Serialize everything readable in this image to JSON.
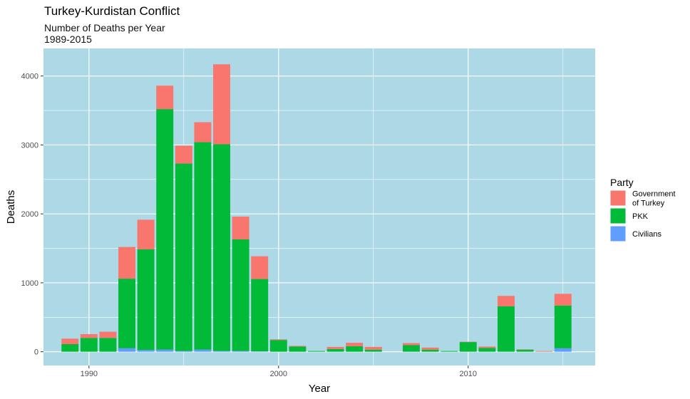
{
  "chart_data": {
    "type": "bar",
    "stacked": true,
    "title": "Turkey-Kurdistan Conflict",
    "subtitle_line1": "Number of Deaths per Year",
    "subtitle_line2": "1989-2015",
    "xlabel": "Year",
    "ylabel": "Deaths",
    "xlim": [
      1987.6,
      2016.7
    ],
    "ylim": [
      -200,
      4400
    ],
    "x_ticks": [
      1990,
      2000,
      2010
    ],
    "y_ticks": [
      0,
      1000,
      2000,
      3000,
      4000
    ],
    "grid": true,
    "background": "#add8e6",
    "legend_title": "Party",
    "legend_position": "right",
    "legend_entries": [
      "Government\nof Turkey",
      "PKK",
      "Civilians"
    ],
    "series_colors": {
      "Civilians": "#619cff",
      "PKK": "#00ba38",
      "Government": "#f8766d"
    },
    "x": [
      1989,
      1990,
      1991,
      1992,
      1993,
      1994,
      1995,
      1996,
      1997,
      1998,
      1999,
      2000,
      2001,
      2002,
      2003,
      2004,
      2005,
      2006,
      2007,
      2008,
      2009,
      2010,
      2011,
      2012,
      2013,
      2014,
      2015
    ],
    "series": [
      {
        "name": "Civilians",
        "values": [
          0,
          0,
          0,
          50,
          25,
          30,
          10,
          30,
          10,
          10,
          5,
          0,
          0,
          0,
          0,
          0,
          0,
          0,
          0,
          0,
          0,
          0,
          0,
          0,
          0,
          0,
          50
        ]
      },
      {
        "name": "PKK",
        "values": [
          110,
          200,
          200,
          1010,
          1460,
          3490,
          2720,
          3010,
          3000,
          1620,
          1050,
          170,
          75,
          10,
          40,
          80,
          30,
          0,
          95,
          30,
          10,
          140,
          55,
          660,
          30,
          0,
          620
        ]
      },
      {
        "name": "Government of Turkey",
        "values": [
          80,
          55,
          90,
          460,
          430,
          340,
          260,
          290,
          1160,
          330,
          330,
          10,
          10,
          0,
          30,
          50,
          40,
          0,
          30,
          30,
          0,
          5,
          20,
          150,
          5,
          10,
          170
        ]
      }
    ]
  }
}
